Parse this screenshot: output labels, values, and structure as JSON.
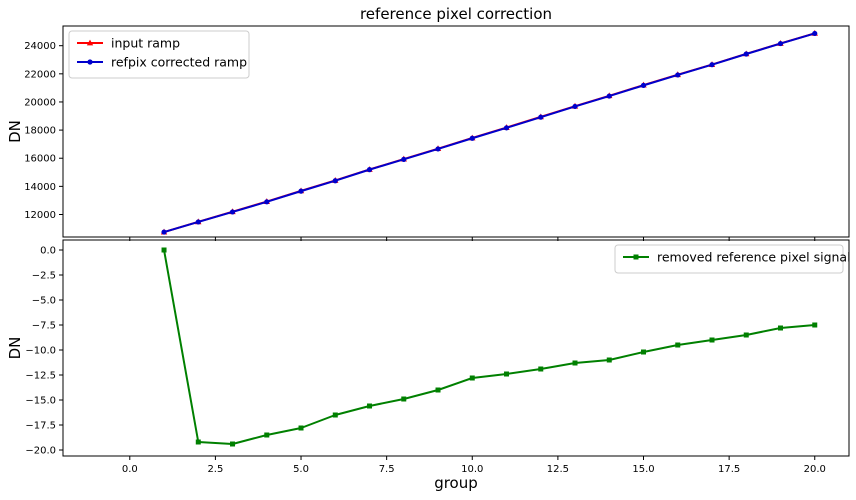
{
  "chart_data": [
    {
      "type": "line",
      "title": "reference pixel correction",
      "xlabel": "",
      "ylabel": "DN",
      "xlim": [
        -1.95,
        21.0
      ],
      "ylim": [
        10400,
        25400
      ],
      "yticks": [
        12000,
        14000,
        16000,
        18000,
        20000,
        22000,
        24000
      ],
      "ytick_labels": [
        "12000",
        "14000",
        "16000",
        "18000",
        "20000",
        "22000",
        "24000"
      ],
      "xticks": [
        0,
        2.5,
        5,
        7.5,
        10,
        12.5,
        15,
        17.5,
        20
      ],
      "grid": false,
      "legend_position": "upper-left",
      "series": [
        {
          "name": "input ramp",
          "color": "#ff0000",
          "marker": "triangle",
          "x": [
            1,
            2,
            3,
            4,
            5,
            6,
            7,
            8,
            9,
            10,
            11,
            12,
            13,
            14,
            15,
            16,
            17,
            18,
            19,
            20
          ],
          "y": [
            10750,
            11480,
            12200,
            12920,
            13680,
            14420,
            15200,
            15940,
            16680,
            17440,
            18180,
            18940,
            19700,
            20440,
            21200,
            21940,
            22660,
            23420,
            24160,
            24880
          ]
        },
        {
          "name": "refpix corrected ramp",
          "color": "#0000cc",
          "marker": "circle",
          "x": [
            1,
            2,
            3,
            4,
            5,
            6,
            7,
            8,
            9,
            10,
            11,
            12,
            13,
            14,
            15,
            16,
            17,
            18,
            19,
            20
          ],
          "y": [
            10750,
            11470,
            12180,
            12900,
            13660,
            14400,
            15190,
            15920,
            16660,
            17420,
            18160,
            18920,
            19680,
            20420,
            21180,
            21920,
            22650,
            23410,
            24150,
            24870
          ]
        }
      ]
    },
    {
      "type": "line",
      "title": "",
      "xlabel": "group",
      "ylabel": "DN",
      "xlim": [
        -1.95,
        21.0
      ],
      "ylim": [
        -20.6,
        1.0
      ],
      "yticks": [
        0,
        -2.5,
        -5,
        -7.5,
        -10,
        -12.5,
        -15,
        -17.5,
        -20
      ],
      "ytick_labels": [
        "0.0",
        "−2.5",
        "−5.0",
        "−7.5",
        "−10.0",
        "−12.5",
        "−15.0",
        "−17.5",
        "−20.0"
      ],
      "xticks": [
        0,
        2.5,
        5,
        7.5,
        10,
        12.5,
        15,
        17.5,
        20
      ],
      "xtick_labels": [
        "0.0",
        "2.5",
        "5.0",
        "7.5",
        "10.0",
        "12.5",
        "15.0",
        "17.5",
        "20.0"
      ],
      "grid": false,
      "legend_position": "upper-right",
      "series": [
        {
          "name": "removed reference pixel signal",
          "color": "#008000",
          "marker": "square",
          "x": [
            1,
            2,
            3,
            4,
            5,
            6,
            7,
            8,
            9,
            10,
            11,
            12,
            13,
            14,
            15,
            16,
            17,
            18,
            19,
            20
          ],
          "y": [
            0.0,
            -19.2,
            -19.4,
            -18.5,
            -17.8,
            -16.5,
            -15.6,
            -14.9,
            -14.0,
            -12.8,
            -12.4,
            -11.9,
            -11.3,
            -11.0,
            -10.2,
            -9.5,
            -9.0,
            -8.5,
            -7.8,
            -7.5
          ]
        }
      ]
    }
  ]
}
